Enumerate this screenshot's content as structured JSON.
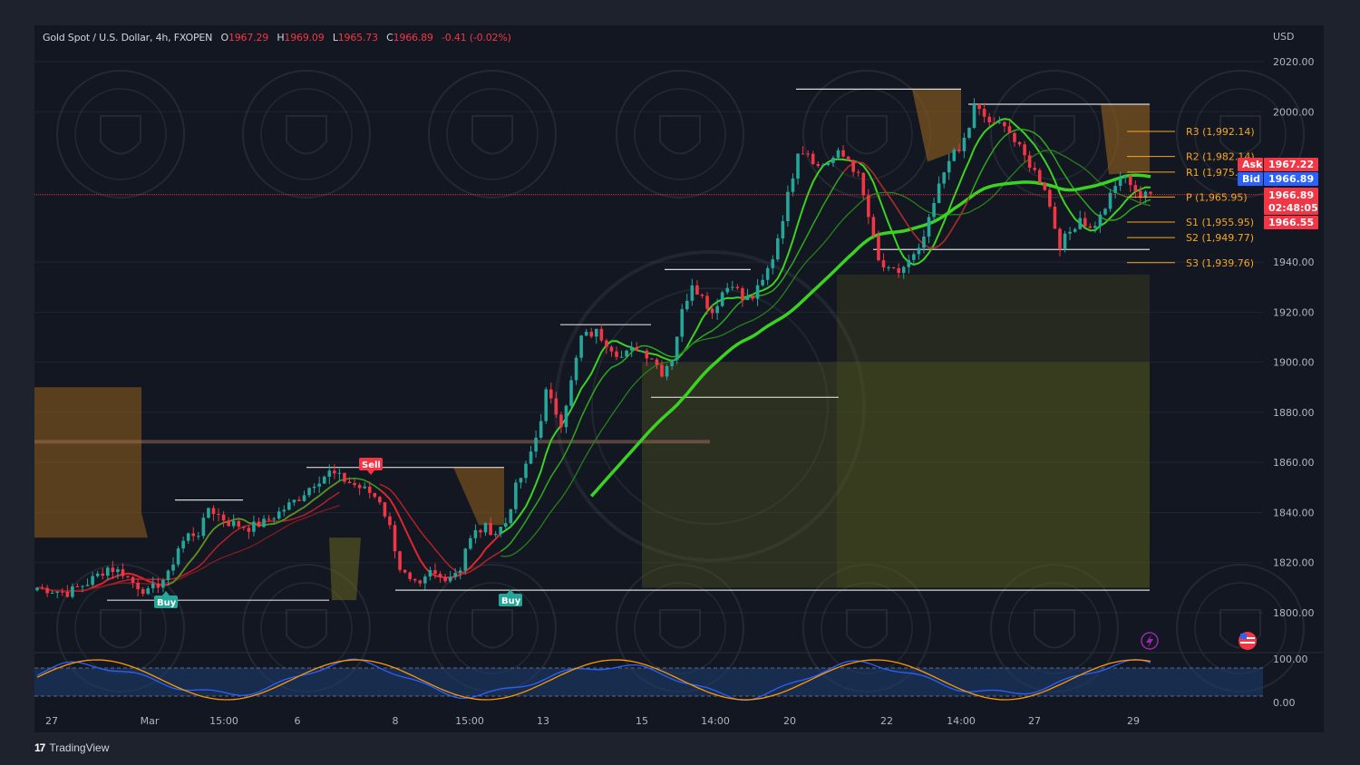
{
  "header": {
    "symbol": "Gold Spot / U.S. Dollar, 4h, FXOPEN",
    "open_label": "O",
    "open": "1967.29",
    "high_label": "H",
    "high": "1969.09",
    "low_label": "L",
    "low": "1965.73",
    "close_label": "C",
    "close": "1966.89",
    "change": "-0.41 (-0.02%)"
  },
  "currency": "USD",
  "footer": {
    "brand": "TradingView",
    "brand_mark": "17"
  },
  "colors": {
    "background": "#131722",
    "up": "#26a69a",
    "down": "#f23645",
    "ma_green": "#3bd322",
    "ma_red": "#e0262d",
    "pivot": "#f5a623",
    "cloud": "#6b6b1f"
  },
  "pivots": [
    {
      "label": "R3 (1,992.14)",
      "value": 1992.14
    },
    {
      "label": "R2 (1,982.14)",
      "value": 1982.14
    },
    {
      "label": "R1 (1,975.",
      "value": 1975.9
    },
    {
      "label": "P (1,965.95)",
      "value": 1965.95
    },
    {
      "label": "S1 (1,955.95)",
      "value": 1955.95
    },
    {
      "label": "S2 (1,949.77)",
      "value": 1949.77
    },
    {
      "label": "S3 (1,939.76)",
      "value": 1939.76
    }
  ],
  "price_tags": {
    "ask_label": "Ask",
    "ask": "1967.22",
    "bid_label": "Bid",
    "bid": "1966.89",
    "last": "1966.89",
    "countdown": "02:48:05",
    "other": "1966.55"
  },
  "signals": [
    {
      "label": "Sell",
      "type": "sell"
    },
    {
      "label": "Buy",
      "type": "buy"
    },
    {
      "label": "Buy",
      "type": "buy"
    }
  ],
  "chart_data": {
    "type": "candlestick",
    "y_axis": {
      "labels": [
        "2020.00",
        "2000.00",
        "1940.00",
        "1920.00",
        "1900.00",
        "1880.00",
        "1860.00",
        "1840.00",
        "1820.00",
        "1800.00"
      ],
      "range": [
        1790,
        2025
      ]
    },
    "oscillator_axis": {
      "labels": [
        "100.00",
        "0.00"
      ],
      "range": [
        0,
        100
      ]
    },
    "x_axis": {
      "labels": [
        "27",
        "Mar",
        "15:00",
        "6",
        "8",
        "15:00",
        "13",
        "15",
        "14:00",
        "20",
        "22",
        "14:00",
        "27",
        "29"
      ]
    },
    "price_path": [
      [
        0,
        1810
      ],
      [
        6,
        1808
      ],
      [
        10,
        1812
      ],
      [
        14,
        1818
      ],
      [
        17,
        1816
      ],
      [
        19,
        1812
      ],
      [
        22,
        1808
      ],
      [
        26,
        1815
      ],
      [
        28,
        1826
      ],
      [
        30,
        1831
      ],
      [
        32,
        1832
      ],
      [
        33,
        1836
      ],
      [
        34,
        1842
      ],
      [
        36,
        1839
      ],
      [
        38,
        1836
      ],
      [
        42,
        1834
      ],
      [
        45,
        1836
      ],
      [
        48,
        1840
      ],
      [
        52,
        1846
      ],
      [
        55,
        1852
      ],
      [
        58,
        1856
      ],
      [
        62,
        1852
      ],
      [
        66,
        1848
      ],
      [
        68,
        1845
      ],
      [
        70,
        1834
      ],
      [
        72,
        1818
      ],
      [
        74,
        1812
      ],
      [
        76,
        1810
      ],
      [
        78,
        1816
      ],
      [
        80,
        1814
      ],
      [
        82,
        1815
      ],
      [
        84,
        1818
      ],
      [
        85,
        1826
      ],
      [
        87,
        1832
      ],
      [
        89,
        1834
      ],
      [
        91,
        1832
      ],
      [
        93,
        1836
      ],
      [
        95,
        1850
      ],
      [
        97,
        1858
      ],
      [
        98,
        1864
      ],
      [
        99,
        1870
      ],
      [
        100,
        1878
      ],
      [
        101,
        1888
      ],
      [
        103,
        1880
      ],
      [
        104,
        1876
      ],
      [
        106,
        1892
      ],
      [
        108,
        1910
      ],
      [
        111,
        1912
      ],
      [
        113,
        1908
      ],
      [
        116,
        1902
      ],
      [
        119,
        1906
      ],
      [
        122,
        1902
      ],
      [
        124,
        1896
      ],
      [
        126,
        1902
      ],
      [
        128,
        1920
      ],
      [
        130,
        1932
      ],
      [
        132,
        1926
      ],
      [
        134,
        1920
      ],
      [
        136,
        1928
      ],
      [
        138,
        1932
      ],
      [
        140,
        1925
      ],
      [
        142,
        1926
      ],
      [
        144,
        1932
      ],
      [
        146,
        1942
      ],
      [
        148,
        1958
      ],
      [
        150,
        1975
      ],
      [
        151,
        1985
      ],
      [
        153,
        1984
      ],
      [
        155,
        1978
      ],
      [
        157,
        1980
      ],
      [
        159,
        1983
      ],
      [
        161,
        1981
      ],
      [
        163,
        1974
      ],
      [
        165,
        1958
      ],
      [
        167,
        1940
      ],
      [
        169,
        1936
      ],
      [
        171,
        1936
      ],
      [
        173,
        1940
      ],
      [
        175,
        1944
      ],
      [
        177,
        1956
      ],
      [
        179,
        1970
      ],
      [
        181,
        1982
      ],
      [
        183,
        1984
      ],
      [
        185,
        1994
      ],
      [
        186,
        2002
      ],
      [
        188,
        1998
      ],
      [
        190,
        1994
      ],
      [
        192,
        1996
      ],
      [
        194,
        1988
      ],
      [
        196,
        1982
      ],
      [
        198,
        1976
      ],
      [
        200,
        1970
      ],
      [
        202,
        1954
      ],
      [
        203,
        1947
      ],
      [
        205,
        1952
      ],
      [
        207,
        1958
      ],
      [
        209,
        1953
      ],
      [
        211,
        1958
      ],
      [
        213,
        1966
      ],
      [
        215,
        1974
      ],
      [
        217,
        1972
      ],
      [
        219,
        1966
      ],
      [
        221,
        1967
      ]
    ]
  }
}
